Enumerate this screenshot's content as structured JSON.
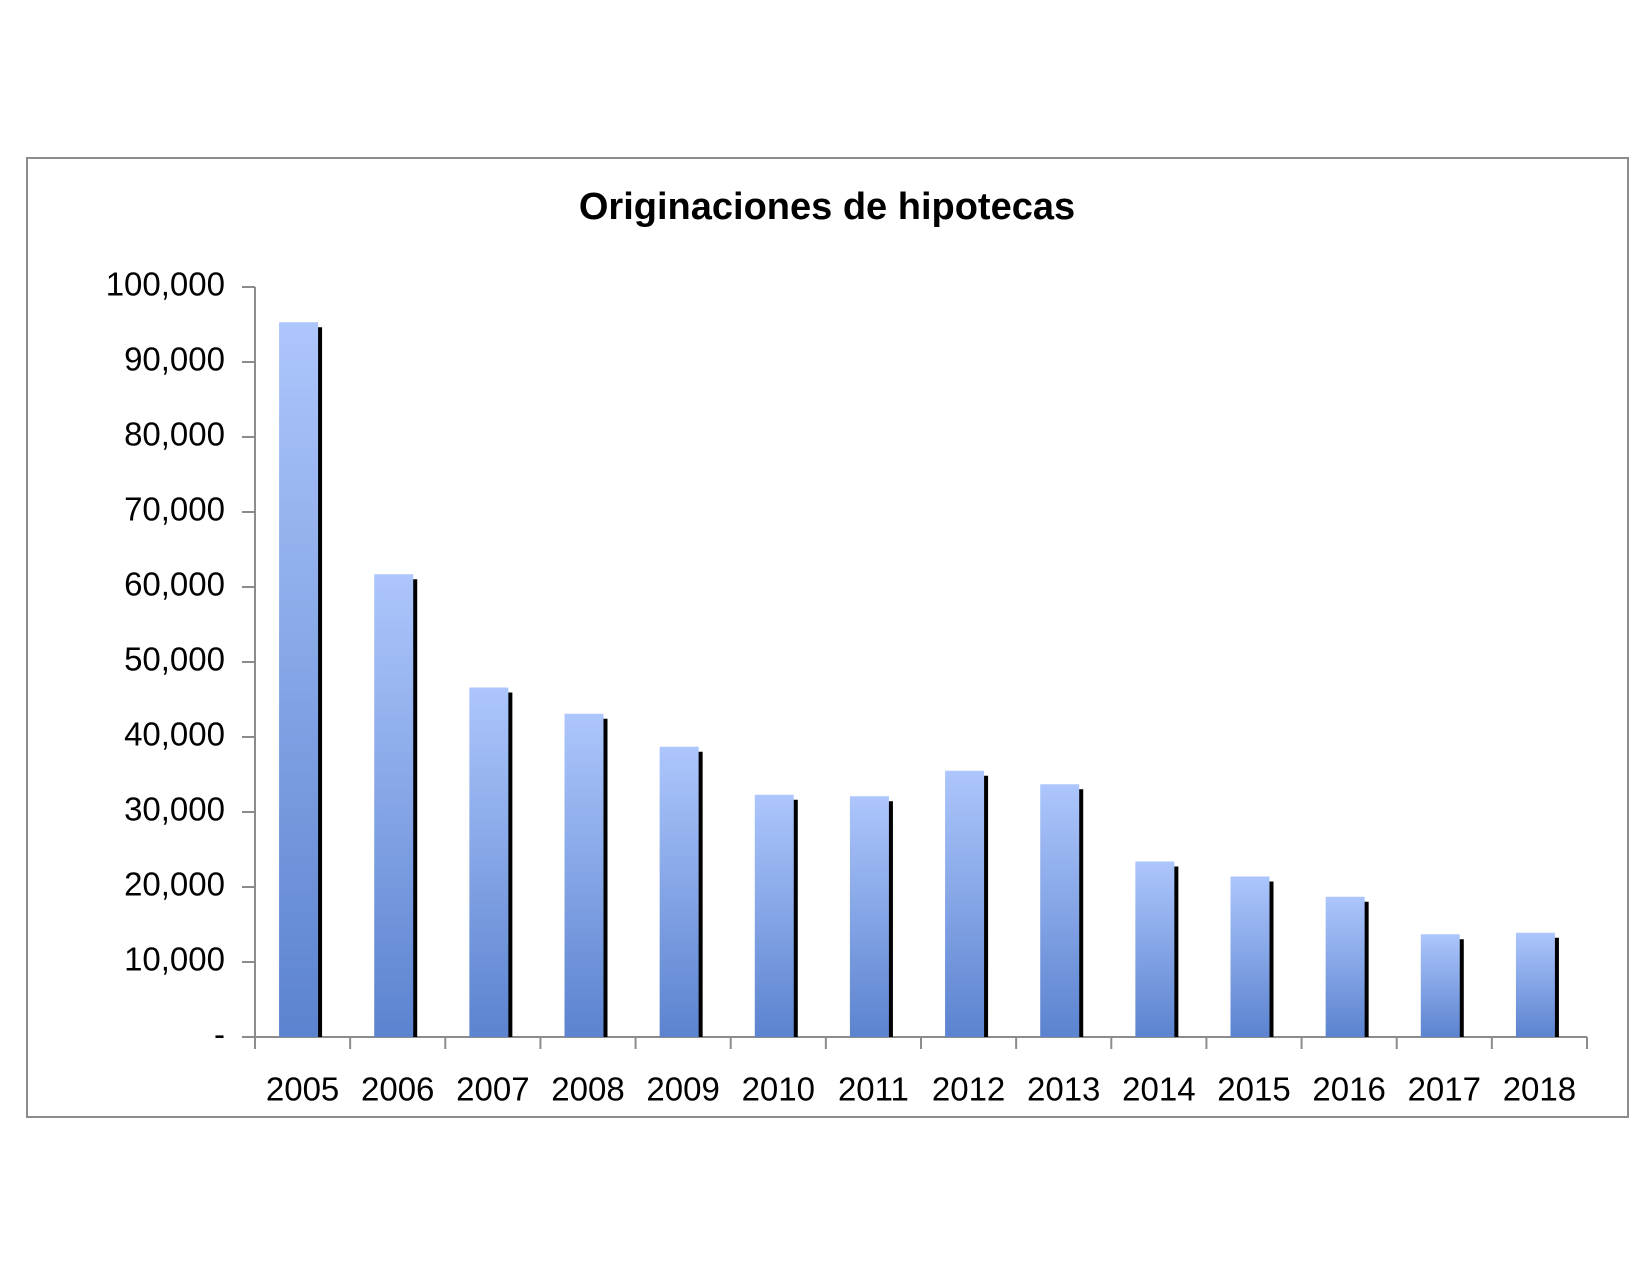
{
  "chart_data": {
    "type": "bar",
    "title": "Originaciones de hipotecas",
    "categories": [
      "2005",
      "2006",
      "2007",
      "2008",
      "2009",
      "2010",
      "2011",
      "2012",
      "2013",
      "2014",
      "2015",
      "2016",
      "2017",
      "2018"
    ],
    "values": [
      95300,
      61700,
      46600,
      43100,
      38700,
      32300,
      32100,
      35500,
      33700,
      23400,
      21400,
      18700,
      13700,
      13900
    ],
    "color": "#7b9de3",
    "ylim": [
      0,
      100000
    ],
    "yticks": [
      {
        "value": 0,
        "label": "-"
      },
      {
        "value": 10000,
        "label": "10,000"
      },
      {
        "value": 20000,
        "label": "20,000"
      },
      {
        "value": 30000,
        "label": "30,000"
      },
      {
        "value": 40000,
        "label": "40,000"
      },
      {
        "value": 50000,
        "label": "50,000"
      },
      {
        "value": 60000,
        "label": "60,000"
      },
      {
        "value": 70000,
        "label": "70,000"
      },
      {
        "value": 80000,
        "label": "80,000"
      },
      {
        "value": 90000,
        "label": "90,000"
      },
      {
        "value": 100000,
        "label": "100,000"
      }
    ],
    "grid": false
  }
}
